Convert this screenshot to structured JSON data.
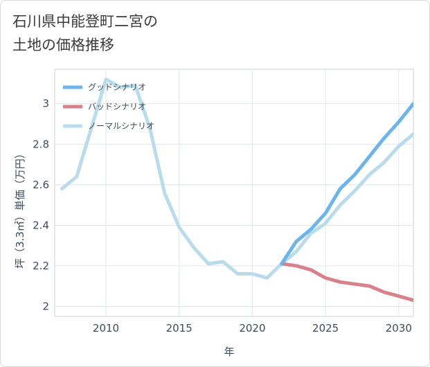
{
  "title": {
    "line1": "石川県中能登町二宮の",
    "line2": "土地の価格推移"
  },
  "chart_data": {
    "type": "line",
    "title": "石川県中能登町二宮の土地の価格推移",
    "xlabel": "年",
    "ylabel": "坪（3.3㎡）単価（万円）",
    "xlim": [
      2006.5,
      2031
    ],
    "ylim": [
      1.95,
      3.17
    ],
    "x_ticks": [
      2010,
      2015,
      2020,
      2025,
      2030
    ],
    "y_ticks": [
      2,
      2.2,
      2.4,
      2.6,
      2.8,
      3
    ],
    "y_tick_labels": [
      "2",
      "2.2",
      "2.4",
      "2.6",
      "2.8",
      "3"
    ],
    "grid": true,
    "legend_position": "top-left",
    "series": [
      {
        "name": "グッドシナリオ",
        "color": "#6cb4ec",
        "x": [
          2022,
          2023,
          2024,
          2025,
          2026,
          2027,
          2028,
          2029,
          2030,
          2031
        ],
        "y": [
          2.21,
          2.32,
          2.38,
          2.46,
          2.58,
          2.65,
          2.74,
          2.83,
          2.91,
          3.0
        ]
      },
      {
        "name": "バッドシナリオ",
        "color": "#d9818a",
        "x": [
          2022,
          2023,
          2024,
          2025,
          2026,
          2027,
          2028,
          2029,
          2030,
          2031
        ],
        "y": [
          2.21,
          2.2,
          2.18,
          2.14,
          2.12,
          2.11,
          2.1,
          2.07,
          2.05,
          2.03
        ]
      },
      {
        "name": "ノーマルシナリオ",
        "color": "#b8dcec",
        "x": [
          2007,
          2008,
          2009,
          2010,
          2011,
          2012,
          2013,
          2014,
          2015,
          2016,
          2017,
          2018,
          2019,
          2020,
          2021,
          2022,
          2023,
          2024,
          2025,
          2026,
          2027,
          2028,
          2029,
          2030,
          2031
        ],
        "y": [
          2.58,
          2.64,
          2.88,
          3.12,
          3.08,
          3.09,
          2.88,
          2.56,
          2.39,
          2.29,
          2.21,
          2.22,
          2.16,
          2.16,
          2.14,
          2.21,
          2.27,
          2.36,
          2.41,
          2.5,
          2.57,
          2.65,
          2.71,
          2.79,
          2.85
        ]
      }
    ]
  }
}
